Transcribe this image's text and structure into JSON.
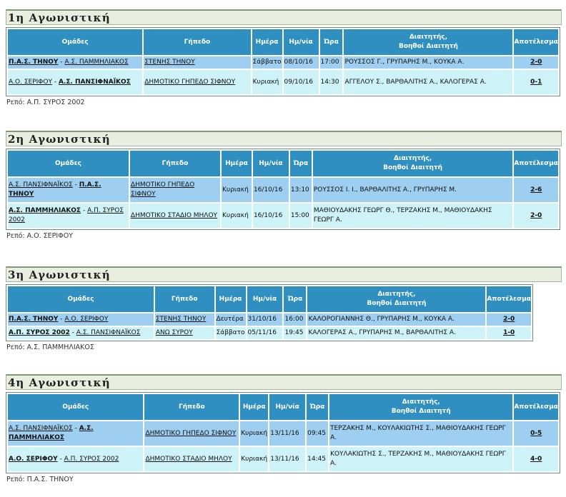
{
  "headers": {
    "teams": "Ομάδες",
    "venue": "Γήπεδο",
    "day": "Ημέρα",
    "date": "Ημ/νία",
    "time": "Ώρα",
    "referees_1": "Διαιτητής,",
    "referees_2": "Βοηθοί Διαιτητή",
    "result": "Αποτέλεσμα"
  },
  "rest_label": "Ρεπό:",
  "rounds": [
    {
      "title": "1η Αγωνιστική",
      "rest": "Α.Π. ΣΥΡΟΣ 2002",
      "games": [
        {
          "home": "Π.Α.Σ. ΤΗΝΟΥ",
          "away": "Α.Σ. ΠΑΜΜΗΛΙΑΚΟΣ",
          "venue": "ΣΤΕΝΗΣ ΤΗΝΟΥ",
          "day": "Σάββατο",
          "date": "08/10/16",
          "time": "17:00",
          "referees": "ΡΟΥΣΣΟΣ Γ., ΓΡΥΠΑΡΗΣ Μ., ΚΟΥΚΑ Α.",
          "result": "2-0"
        },
        {
          "home": "Α.Ο. ΣΕΡΙΦΟΥ",
          "away": "Α.Σ. ΠΑΝΣΙΦΝΑΪΚΟΣ",
          "venue": "ΔΗΜΟΤΙΚΟ ΓΗΠΕΔΟ ΣΙΦΝΟΥ",
          "day": "Κυριακή",
          "date": "09/10/16",
          "time": "14:30",
          "referees": "ΑΓΓΕΛΟΥ Σ., ΒΑΡΘΑΛΙΤΗΣ Α., ΚΑΛΟΓΕΡΑΣ Α.",
          "result": "0-1"
        }
      ]
    },
    {
      "title": "2η Αγωνιστική",
      "rest": "Α.Ο. ΣΕΡΙΦΟΥ",
      "games": [
        {
          "home": "Α.Σ. ΠΑΝΣΙΦΝΑΪΚΟΣ",
          "away": "Π.Α.Σ. ΤΗΝΟΥ",
          "venue": "ΔΗΜΟΤΙΚΟ ΓΗΠΕΔΟ ΣΙΦΝΟΥ",
          "day": "Κυριακή",
          "date": "16/10/16",
          "time": "13:10",
          "referees": "ΡΟΥΣΣΟΣ Ι. Ι., ΒΑΡΘΑΛΙΤΗΣ Α., ΓΡΥΠΑΡΗΣ Μ.",
          "result": "2-6"
        },
        {
          "home": "Α.Σ. ΠΑΜΜΗΛΙΑΚΟΣ",
          "away": "Α.Π. ΣΥΡΟΣ 2002",
          "venue": "ΔΗΜΟΤΙΚΟ ΣΤΑΔΙΟ ΜΗΛΟΥ",
          "day": "Κυριακή",
          "date": "16/10/16",
          "time": "15:00",
          "referees": "ΜΑΘΙΟΥΔΑΚΗΣ ΓΕΩΡΓ Θ., ΤΕΡΖΑΚΗΣ Μ., ΜΑΘΙΟΥΔΑΚΗΣ ΓΕΩΡΓ Α.",
          "result": "2-0"
        }
      ]
    },
    {
      "title": "3η Αγωνιστική",
      "rest": "Α.Σ. ΠΑΜΜΗΛΙΑΚΟΣ",
      "games": [
        {
          "home": "Π.Α.Σ. ΤΗΝΟΥ",
          "away": "Α.Ο. ΣΕΡΙΦΟΥ",
          "venue": "ΣΤΕΝΗΣ ΤΗΝΟΥ",
          "day": "Δευτέρα",
          "date": "31/10/16",
          "time": "16:00",
          "referees": "ΚΑΛΟΡΟΓΙΑΝΝΗΣ Θ., ΓΡΥΠΑΡΗΣ Μ., ΚΟΥΚΑ Α.",
          "result": "2-0"
        },
        {
          "home": "Α.Π. ΣΥΡΟΣ 2002",
          "away": "Α.Σ. ΠΑΝΣΙΦΝΑΪΚΟΣ",
          "venue": "ΑΝΩ ΣΥΡΟΥ",
          "day": "Σάββατο",
          "date": "05/11/16",
          "time": "19:45",
          "referees": "ΚΑΛΟΓΕΡΑΣ Α., ΓΡΥΠΑΡΗΣ Μ., ΒΑΡΘΑΛΙΤΗΣ Α.",
          "result": "1-0"
        }
      ]
    },
    {
      "title": "4η Αγωνιστική",
      "rest": "Π.Α.Σ. ΤΗΝΟΥ",
      "games": [
        {
          "home": "Α.Σ. ΠΑΝΣΙΦΝΑΪΚΟΣ",
          "away": "Α.Σ. ΠΑΜΜΗΛΙΑΚΟΣ",
          "venue": "ΔΗΜΟΤΙΚΟ ΓΗΠΕΔΟ ΣΙΦΝΟΥ",
          "day": "Κυριακή",
          "date": "13/11/16",
          "time": "09:45",
          "referees": "ΤΕΡΖΑΚΗΣ Μ., ΚΟΥΛΑΚΙΩΤΗΣ Σ., ΜΑΘΙΟΥΔΑΚΗΣ ΓΕΩΡΓ Α.",
          "result": "0-5"
        },
        {
          "home": "Α.Ο. ΣΕΡΙΦΟΥ",
          "away": "Α.Π. ΣΥΡΟΣ 2002",
          "venue": "ΔΗΜΟΤΙΚΟ ΣΤΑΔΙΟ ΜΗΛΟΥ",
          "day": "Κυριακή",
          "date": "13/11/16",
          "time": "14:45",
          "referees": "ΚΟΥΛΑΚΙΩΤΗΣ Σ., ΤΕΡΖΑΚΗΣ Μ., ΜΑΘΙΟΥΔΑΚΗΣ ΓΕΩΡΓ Α.",
          "result": "4-0"
        }
      ]
    }
  ]
}
